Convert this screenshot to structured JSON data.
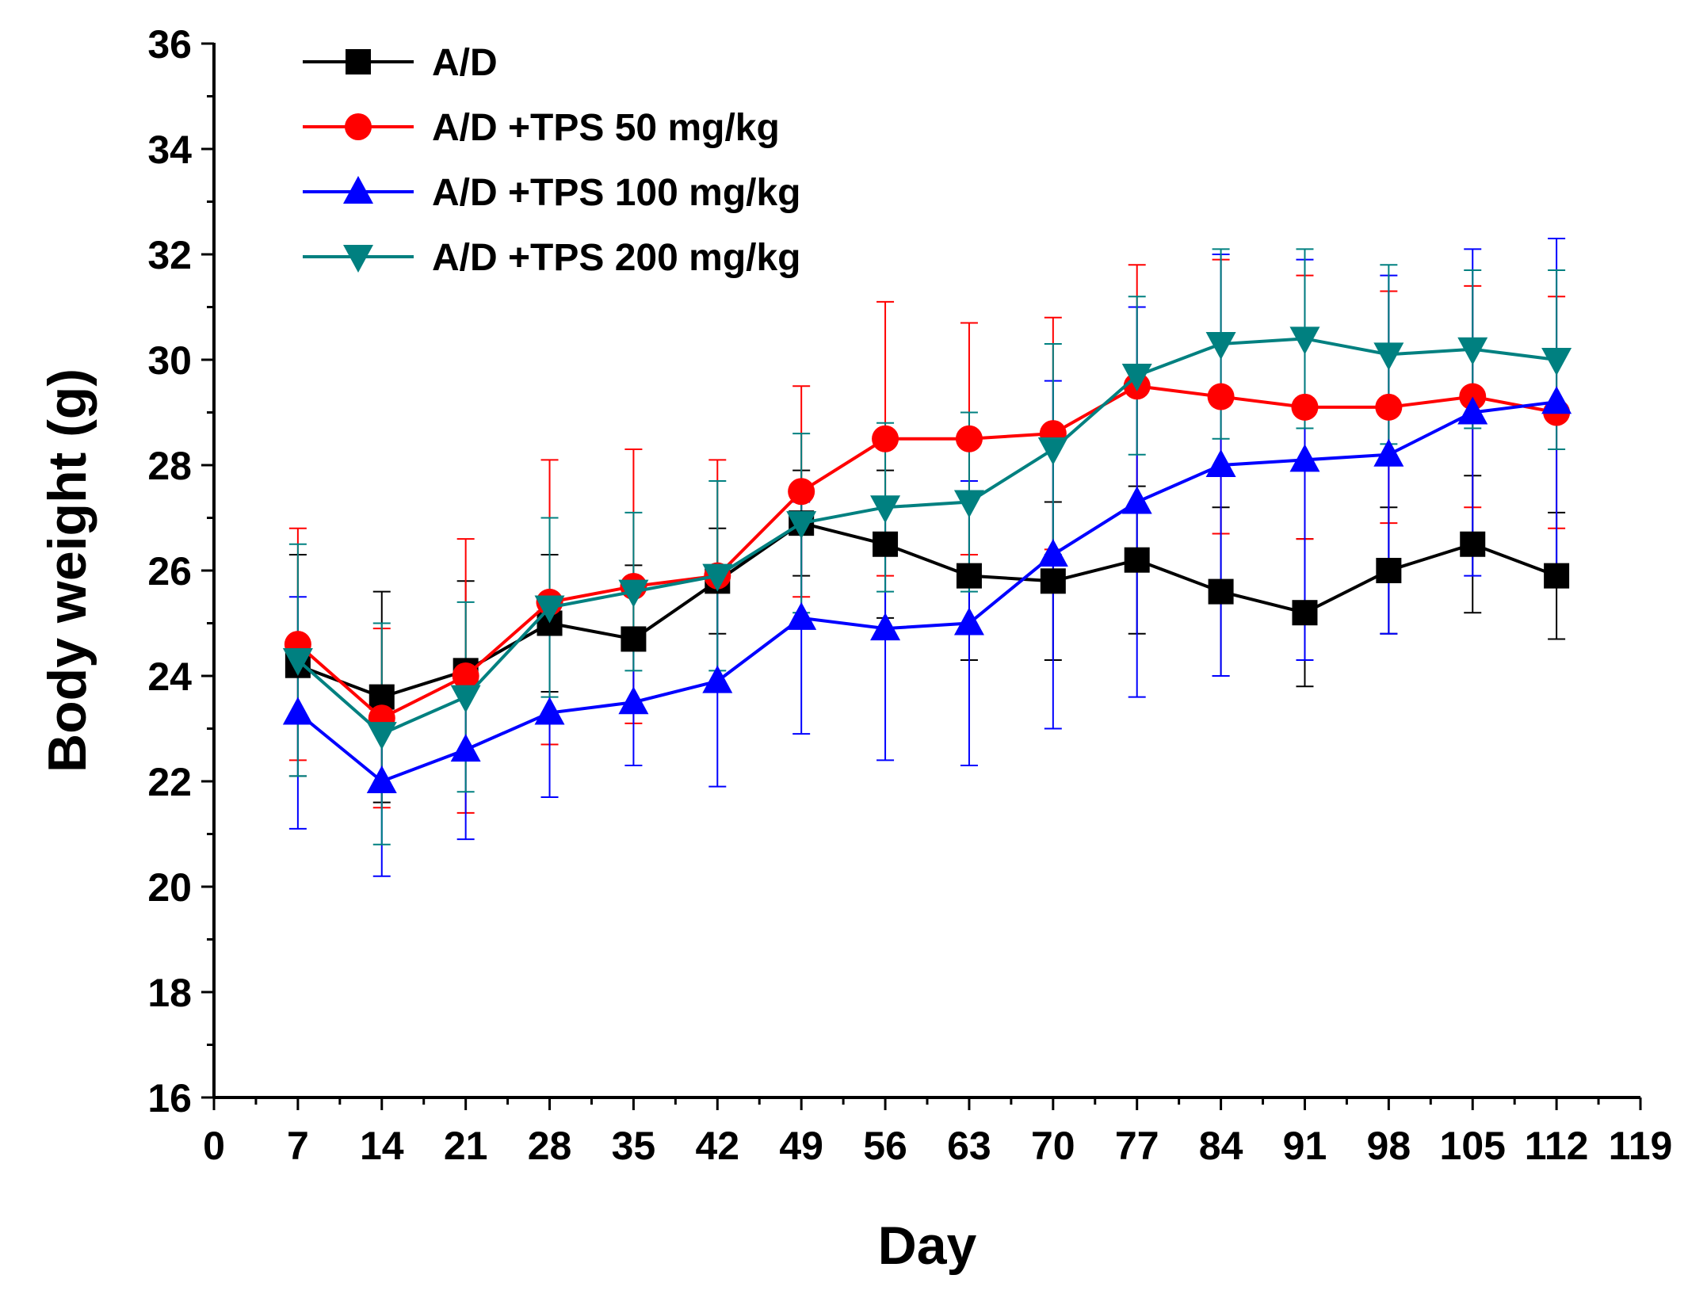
{
  "chart_data": {
    "type": "line",
    "title": "",
    "xlabel": "Day",
    "ylabel": "Body weight (g)",
    "xlim": [
      0,
      119
    ],
    "ylim": [
      16,
      36
    ],
    "x_ticks": [
      "0",
      "7",
      "14",
      "21",
      "28",
      "35",
      "42",
      "49",
      "56",
      "63",
      "70",
      "77",
      "84",
      "91",
      "98",
      "105",
      "112",
      "119"
    ],
    "y_ticks": [
      "16",
      "18",
      "20",
      "22",
      "24",
      "26",
      "28",
      "30",
      "32",
      "34",
      "36"
    ],
    "grid": false,
    "legend_position": "top-left",
    "x": [
      7,
      14,
      21,
      28,
      35,
      42,
      49,
      56,
      63,
      70,
      77,
      84,
      91,
      98,
      105,
      112
    ],
    "series": [
      {
        "name": "A/D",
        "color": "#000000",
        "marker": "square",
        "values": [
          24.2,
          23.6,
          24.1,
          25.0,
          24.7,
          25.8,
          26.9,
          26.5,
          25.9,
          25.8,
          26.2,
          25.6,
          25.2,
          26.0,
          26.5,
          25.9
        ],
        "error": [
          2.1,
          2.0,
          1.7,
          1.3,
          1.4,
          1.0,
          1.0,
          1.4,
          1.6,
          1.5,
          1.4,
          1.6,
          1.4,
          1.2,
          1.3,
          1.2
        ]
      },
      {
        "name": "A/D +TPS 50 mg/kg",
        "color": "#ff0000",
        "marker": "circle",
        "values": [
          24.6,
          23.2,
          24.0,
          25.4,
          25.7,
          25.9,
          27.5,
          28.5,
          28.5,
          28.6,
          29.5,
          29.3,
          29.1,
          29.1,
          29.3,
          29.0
        ],
        "error": [
          2.2,
          1.7,
          2.6,
          2.7,
          2.6,
          2.2,
          2.0,
          2.6,
          2.2,
          2.2,
          2.3,
          2.6,
          2.5,
          2.2,
          2.1,
          2.2
        ]
      },
      {
        "name": "A/D +TPS 100 mg/kg",
        "color": "#0000ff",
        "marker": "triangle-up",
        "values": [
          23.3,
          22.0,
          22.6,
          23.3,
          23.5,
          23.9,
          25.1,
          24.9,
          25.0,
          26.3,
          27.3,
          28.0,
          28.1,
          28.2,
          29.0,
          29.2
        ],
        "error": [
          2.2,
          1.8,
          1.7,
          1.6,
          1.2,
          2.0,
          2.2,
          2.5,
          2.7,
          3.3,
          3.7,
          4.0,
          3.8,
          3.4,
          3.1,
          3.1
        ]
      },
      {
        "name": "A/D +TPS 200 mg/kg",
        "color": "#008080",
        "marker": "triangle-down",
        "values": [
          24.3,
          22.9,
          23.6,
          25.3,
          25.6,
          25.9,
          26.9,
          27.2,
          27.3,
          28.3,
          29.7,
          30.3,
          30.4,
          30.1,
          30.2,
          30.0
        ],
        "error": [
          2.2,
          2.1,
          1.8,
          1.7,
          1.5,
          1.8,
          1.7,
          1.6,
          1.7,
          2.0,
          1.5,
          1.8,
          1.7,
          1.7,
          1.5,
          1.7
        ]
      }
    ]
  }
}
